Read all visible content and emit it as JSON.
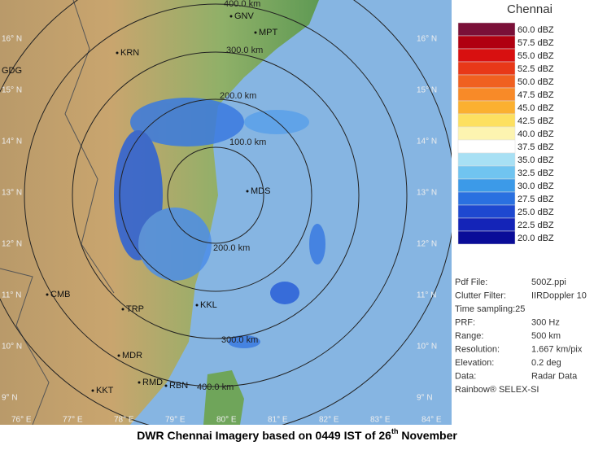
{
  "map": {
    "ring_labels": [
      "400.0 km",
      "300.0 km",
      "200.0 km",
      "100.0 km",
      "200.0 km",
      "300.0 km",
      "400.0 km"
    ],
    "cities": [
      "GNV",
      "MPT",
      "KRN",
      "GDG",
      "MDS",
      "TRP",
      "KKL",
      "CMB",
      "MDR",
      "RMD",
      "RBN",
      "KKT"
    ],
    "lat_labels": [
      "16° N",
      "15° N",
      "14° N",
      "13° N",
      "12° N",
      "11° N",
      "10° N",
      "9° N"
    ],
    "lon_labels": [
      "76° E",
      "77° E",
      "78° E",
      "79° E",
      "80° E",
      "81° E",
      "82° E",
      "83° E",
      "84° E"
    ]
  },
  "legend": {
    "title": "Chennai",
    "entries": [
      {
        "label": "60.0 dBZ",
        "color": "#7a1038"
      },
      {
        "label": "57.5 dBZ",
        "color": "#b00010"
      },
      {
        "label": "55.0 dBZ",
        "color": "#d81010"
      },
      {
        "label": "52.5 dBZ",
        "color": "#e83818"
      },
      {
        "label": "50.0 dBZ",
        "color": "#f06020"
      },
      {
        "label": "47.5 dBZ",
        "color": "#f88a28"
      },
      {
        "label": "45.0 dBZ",
        "color": "#fbb030"
      },
      {
        "label": "42.5 dBZ",
        "color": "#fde060"
      },
      {
        "label": "40.0 dBZ",
        "color": "#fdf4b0"
      },
      {
        "label": "37.5 dBZ",
        "color": "#ffffff"
      },
      {
        "label": "35.0 dBZ",
        "color": "#a8e0f4"
      },
      {
        "label": "32.5 dBZ",
        "color": "#70c4f0"
      },
      {
        "label": "30.0 dBZ",
        "color": "#3c9ae8"
      },
      {
        "label": "27.5 dBZ",
        "color": "#2a70e0"
      },
      {
        "label": "25.0 dBZ",
        "color": "#1e48d0"
      },
      {
        "label": "22.5 dBZ",
        "color": "#1424b8"
      },
      {
        "label": "20.0 dBZ",
        "color": "#0a0c98"
      }
    ]
  },
  "info": {
    "rows": [
      [
        "Pdf File:",
        "500Z.ppi"
      ],
      [
        "Clutter Filter:",
        "IIRDoppler 10"
      ],
      [
        "Time sampling:25",
        ""
      ],
      [
        "PRF:",
        "300 Hz"
      ],
      [
        "Range:",
        "500 km"
      ],
      [
        "Resolution:",
        "1.667 km/pix"
      ],
      [
        "Elevation:",
        "0.2 deg"
      ],
      [
        "Data:",
        "Radar Data"
      ],
      [
        "Rainbow® SELEX-SI",
        ""
      ]
    ]
  },
  "footer": {
    "text": "DWR Chennai Imagery based on 0449 IST of 26",
    "sup": "th",
    "tail": " November"
  }
}
